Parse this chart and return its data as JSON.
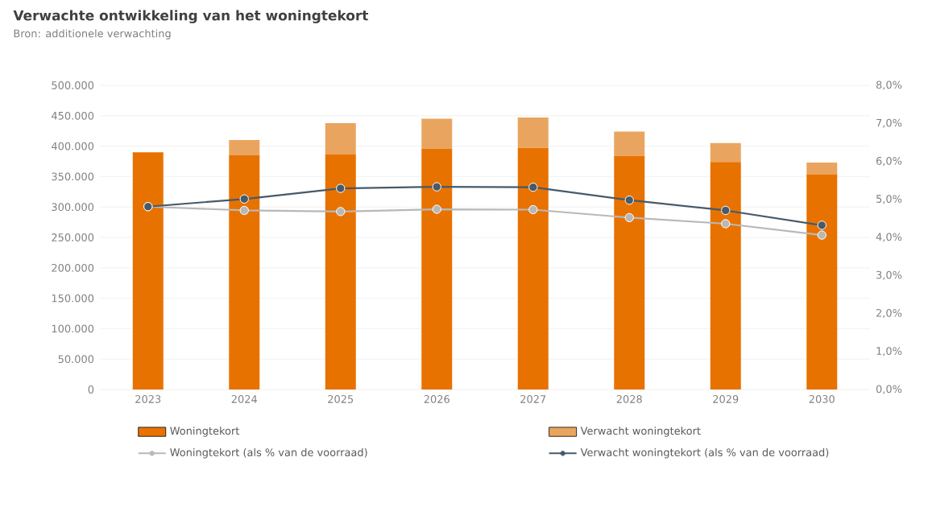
{
  "chart_data": {
    "type": "bar",
    "title": "Verwachte ontwikkeling van het woningtekort",
    "subtitle": "Bron: additionele verwachting",
    "categories": [
      "2023",
      "2024",
      "2025",
      "2026",
      "2027",
      "2028",
      "2029",
      "2030"
    ],
    "stacked": true,
    "series": [
      {
        "name": "Woningtekort",
        "color": "#e87200",
        "values": [
          390000,
          385000,
          387000,
          396000,
          397000,
          384000,
          374000,
          354000
        ]
      },
      {
        "name": "Verwacht woningtekort",
        "color": "#e9a55f",
        "values": [
          0,
          25000,
          51000,
          49000,
          50000,
          40000,
          31000,
          19000
        ]
      },
      {
        "name": "Woningtekort (als % van de voorraad)",
        "type": "line",
        "axis": "y2",
        "color": "#b8b8b8",
        "marker": "circle",
        "line_style": "solid",
        "values": [
          4.81,
          4.71,
          4.68,
          4.74,
          4.73,
          4.52,
          4.36,
          4.06
        ]
      },
      {
        "name": "Verwacht woningtekort (als % van de voorraad)",
        "type": "line",
        "axis": "y2",
        "color": "#465a6b",
        "marker": "circle",
        "line_style": "solid",
        "values": [
          4.81,
          5.01,
          5.29,
          5.33,
          5.32,
          4.98,
          4.71,
          4.32
        ]
      }
    ],
    "ylim": [
      0,
      500000
    ],
    "yticks": [
      0,
      {
        "value": 50000,
        "label": "50.000"
      },
      {
        "value": 100000,
        "label": "100.000"
      },
      {
        "value": 150000,
        "label": "150.000"
      },
      {
        "value": 200000,
        "label": "200.000"
      },
      {
        "value": 250000,
        "label": "250.000"
      },
      {
        "value": 300000,
        "label": "300.000"
      },
      {
        "value": 350000,
        "label": "350.000"
      },
      {
        "value": 400000,
        "label": "400.000"
      },
      {
        "value": 450000,
        "label": "450.000"
      },
      {
        "value": 500000,
        "label": "500.000"
      }
    ],
    "y2lim": [
      0,
      8
    ],
    "y2ticks": [
      {
        "value": 0,
        "label": "0,0%"
      },
      {
        "value": 1,
        "label": "1,0%"
      },
      {
        "value": 2,
        "label": "2,0%"
      },
      {
        "value": 3,
        "label": "3,0%"
      },
      {
        "value": 4,
        "label": "4,0%"
      },
      {
        "value": 5,
        "label": "5,0%"
      },
      {
        "value": 6,
        "label": "6,0%"
      },
      {
        "value": 7,
        "label": "7,0%"
      },
      {
        "value": 8,
        "label": "8,0%"
      }
    ],
    "grid": "y",
    "legend": "bottom"
  }
}
